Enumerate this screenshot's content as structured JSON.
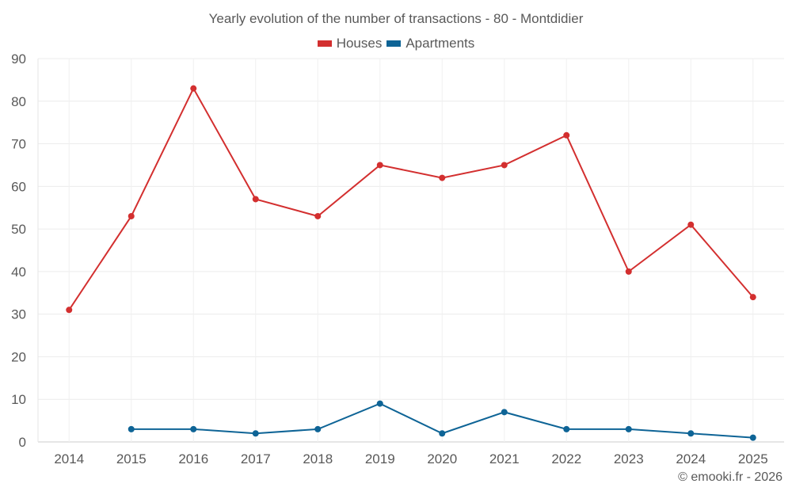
{
  "chart_data": {
    "type": "line",
    "title": "Yearly evolution of the number of transactions - 80 - Montdidier",
    "categories": [
      "2014",
      "2015",
      "2016",
      "2017",
      "2018",
      "2019",
      "2020",
      "2021",
      "2022",
      "2023",
      "2024",
      "2025"
    ],
    "series": [
      {
        "name": "Houses",
        "color": "#d32f2f",
        "values": [
          31,
          53,
          83,
          57,
          53,
          65,
          62,
          65,
          72,
          40,
          51,
          34
        ]
      },
      {
        "name": "Apartments",
        "color": "#0e6496",
        "values": [
          null,
          3,
          3,
          2,
          3,
          9,
          2,
          7,
          3,
          3,
          2,
          1
        ]
      }
    ],
    "ylim": [
      0,
      90
    ],
    "yticks": [
      0,
      10,
      20,
      30,
      40,
      50,
      60,
      70,
      80,
      90
    ],
    "xlabel": "",
    "ylabel": "",
    "grid": true,
    "legend": "top-center"
  },
  "credit": "© emooki.fr - 2026"
}
